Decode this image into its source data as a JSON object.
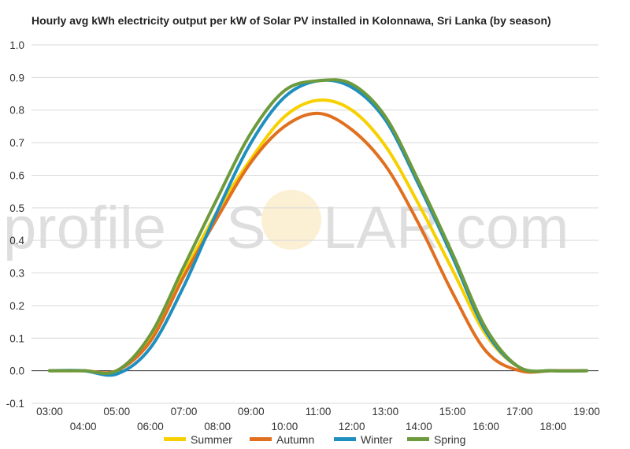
{
  "chart_data": {
    "type": "line",
    "title": "Hourly avg kWh electricity output per kW of Solar PV installed in Kolonnawa, Sri Lanka (by season)",
    "xlabel": "",
    "ylabel": "",
    "ylim": [
      -0.1,
      1.0
    ],
    "yticks": [
      "1.0",
      "0.9",
      "0.8",
      "0.7",
      "0.6",
      "0.5",
      "0.4",
      "0.3",
      "0.2",
      "0.1",
      "0.0",
      "-0.1"
    ],
    "x": [
      "03:00",
      "04:00",
      "05:00",
      "06:00",
      "07:00",
      "08:00",
      "09:00",
      "10:00",
      "11:00",
      "12:00",
      "13:00",
      "14:00",
      "15:00",
      "16:00",
      "17:00",
      "18:00",
      "19:00"
    ],
    "grid": true,
    "legend_position": "bottom",
    "series": [
      {
        "name": "Summer",
        "color": "#f7d000",
        "values": [
          0.0,
          0.0,
          0.0,
          0.1,
          0.3,
          0.49,
          0.65,
          0.78,
          0.83,
          0.8,
          0.69,
          0.51,
          0.31,
          0.11,
          0.01,
          0.0,
          0.0
        ]
      },
      {
        "name": "Autumn",
        "color": "#e07020",
        "values": [
          0.0,
          0.0,
          0.0,
          0.09,
          0.29,
          0.47,
          0.64,
          0.75,
          0.79,
          0.74,
          0.63,
          0.45,
          0.24,
          0.06,
          0.0,
          0.0,
          0.0
        ]
      },
      {
        "name": "Winter",
        "color": "#1f8fc0",
        "values": [
          0.0,
          0.0,
          -0.01,
          0.07,
          0.26,
          0.49,
          0.7,
          0.84,
          0.89,
          0.87,
          0.77,
          0.57,
          0.35,
          0.12,
          0.01,
          0.0,
          0.0
        ]
      },
      {
        "name": "Spring",
        "color": "#6d9a3c",
        "values": [
          0.0,
          0.0,
          0.0,
          0.11,
          0.32,
          0.53,
          0.73,
          0.86,
          0.89,
          0.88,
          0.78,
          0.58,
          0.36,
          0.13,
          0.01,
          0.0,
          0.0
        ]
      }
    ]
  },
  "watermark": {
    "left": "profile",
    "center": "S",
    "right": "LAR.com"
  }
}
